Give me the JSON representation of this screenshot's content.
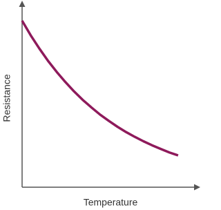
{
  "chart_data": {
    "type": "line",
    "x_label": "Temperature",
    "y_label": "Resistance",
    "x": [
      0,
      0.5,
      1,
      1.5,
      2,
      2.5,
      3,
      3.5,
      4,
      4.5,
      5,
      5.5,
      6,
      6.5,
      7,
      7.5,
      8,
      8.5,
      9
    ],
    "series": [
      {
        "color": "#8e1a5b",
        "values": [
          9.06,
          8.26,
          7.54,
          6.87,
          6.27,
          5.72,
          5.21,
          4.75,
          4.34,
          3.95,
          3.61,
          3.29,
          3.0,
          2.74,
          2.5,
          2.28,
          2.08,
          1.89,
          1.73
        ]
      }
    ],
    "xlim": [
      0,
      10
    ],
    "ylim": [
      0,
      10
    ],
    "grid": false
  }
}
